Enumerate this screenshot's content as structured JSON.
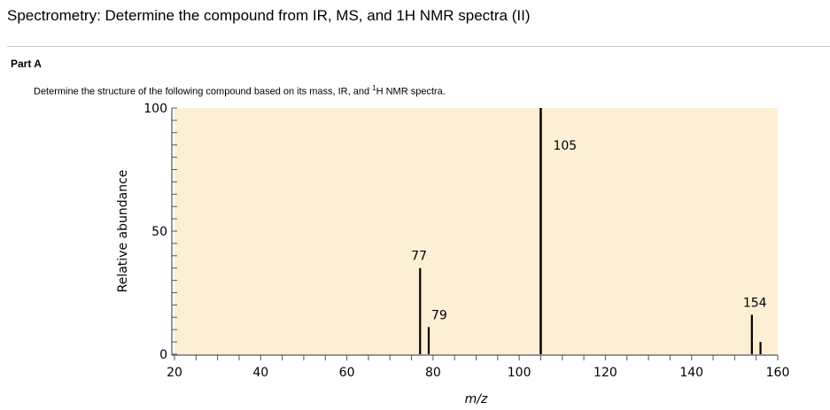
{
  "header": {
    "title": "Spectrometry: Determine the compound from IR, MS, and 1H NMR spectra (II)"
  },
  "part": {
    "label": "Part A",
    "instruction_pre": "Determine the structure of the following compound based on its mass, IR, and ",
    "instruction_sup": "1",
    "instruction_post": "H NMR spectra."
  },
  "chart_data": {
    "type": "bar",
    "title": "",
    "xlabel": "m/z",
    "ylabel": "Relative abundance",
    "xlim": [
      20,
      160
    ],
    "ylim": [
      0,
      100
    ],
    "xticks": [
      20,
      40,
      60,
      80,
      100,
      120,
      140,
      160
    ],
    "yticks": [
      0,
      50,
      100
    ],
    "background": "#fcefd4",
    "peaks": [
      {
        "x": 77,
        "y": 35,
        "label": "77"
      },
      {
        "x": 79,
        "y": 11,
        "label": "79"
      },
      {
        "x": 105,
        "y": 100,
        "label": "105"
      },
      {
        "x": 154,
        "y": 16,
        "label": "154"
      },
      {
        "x": 156,
        "y": 5,
        "label": ""
      }
    ]
  }
}
